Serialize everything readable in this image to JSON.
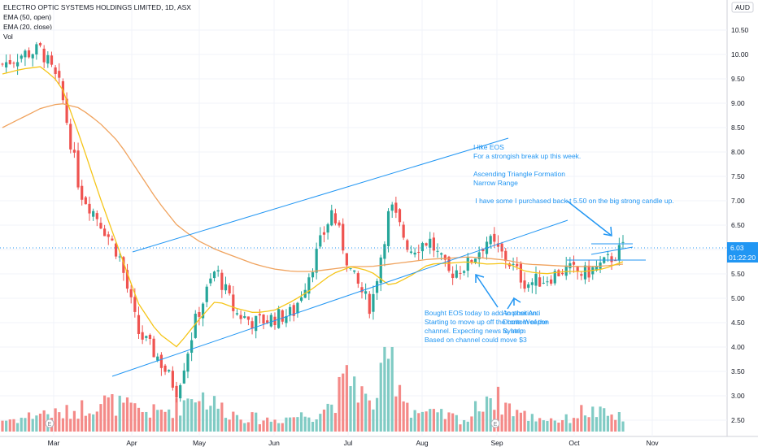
{
  "legend": {
    "title": "ELECTRO OPTIC SYSTEMS HOLDINGS LIMITED, 1D, ASX",
    "ema50": "EMA (50, open)",
    "ema20": "EMA (20, close)",
    "vol": "Vol"
  },
  "price_axis": {
    "currency": "AUD",
    "ticks": [
      "10.50",
      "10.00",
      "9.50",
      "9.00",
      "8.50",
      "8.00",
      "7.50",
      "7.00",
      "6.50",
      "6.00",
      "5.50",
      "5.00",
      "4.50",
      "4.00",
      "3.50",
      "3.00",
      "2.50"
    ],
    "last_price": "6.03",
    "countdown": "01:22:20"
  },
  "time_axis": {
    "ticks": [
      "Mar",
      "Apr",
      "May",
      "Jun",
      "Jul",
      "Aug",
      "Sep",
      "Oct",
      "Nov"
    ]
  },
  "annotations": {
    "top_note": [
      "I like EOS",
      "For a strongish break up this week.",
      "",
      "Ascending Triangle Formation",
      "Narrow Range",
      "",
      " I have some I purchased back t 5.50 on the big strong candle up."
    ],
    "bottom_note": [
      "Bought EOS today to add to position.",
      "Starting to move up off the bottom of the",
      "channel. Expecting news to help.",
      "Based on channel could move $3"
    ],
    "overlap_note": [
      "Another Anti",
      "Drone Weapon",
      "System"
    ]
  },
  "colors": {
    "up": "#26a69a",
    "down": "#ef5350",
    "vol_up": "#80cbc4",
    "vol_down": "#f48a88",
    "ema20": "#f5c518",
    "ema50": "#f0a35e",
    "drawing": "#2196f3",
    "last_price_line": "#2196f3",
    "grid": "#f0f3fa"
  },
  "chart_data": {
    "type": "candlestick",
    "title": "ELECTRO OPTIC SYSTEMS HOLDINGS LIMITED, 1D, ASX",
    "ylim": [
      2.3,
      11.0
    ],
    "y_unit": "AUD",
    "series": [
      {
        "name": "EMA (50, open)",
        "values": [
          8.5,
          8.7,
          8.9,
          9.0,
          8.9,
          8.6,
          8.2,
          7.6,
          7.0,
          6.5,
          6.2,
          6.0,
          5.85,
          5.7,
          5.6,
          5.55,
          5.55,
          5.6,
          5.65,
          5.65,
          5.7,
          5.75,
          5.8,
          5.82,
          5.85,
          5.82,
          5.78,
          5.7,
          5.68,
          5.66,
          5.65,
          5.66,
          5.7
        ]
      },
      {
        "name": "EMA (20, close)",
        "values": [
          9.6,
          9.7,
          9.75,
          9.4,
          8.3,
          7.1,
          6.0,
          4.9,
          4.3,
          4.0,
          4.5,
          4.95,
          4.8,
          4.7,
          4.75,
          4.95,
          5.2,
          5.5,
          5.65,
          5.55,
          5.25,
          5.45,
          5.7,
          5.72,
          5.75,
          5.7,
          5.72,
          5.55,
          5.5,
          5.55,
          5.55,
          5.6,
          5.75
        ]
      },
      {
        "name": "Close",
        "values": [
          9.8,
          10.0,
          10.1,
          9.3,
          7.2,
          6.6,
          5.9,
          4.3,
          3.8,
          3.1,
          4.6,
          5.6,
          4.7,
          4.5,
          4.6,
          4.7,
          5.7,
          6.8,
          5.5,
          4.8,
          6.9,
          6.0,
          6.2,
          5.5,
          5.7,
          6.2,
          5.8,
          5.3,
          5.4,
          5.6,
          5.5,
          5.7,
          6.03
        ]
      },
      {
        "name": "Volume",
        "values": [
          0.6,
          0.7,
          1.0,
          0.9,
          1.2,
          1.6,
          1.4,
          1.1,
          1.0,
          1.3,
          2.1,
          1.4,
          0.9,
          0.7,
          0.6,
          0.8,
          0.9,
          1.5,
          3.0,
          1.2,
          3.9,
          1.2,
          0.9,
          0.8,
          0.6,
          2.0,
          1.4,
          0.8,
          0.7,
          0.6,
          1.1,
          0.9,
          0.7
        ]
      }
    ],
    "time_ticks": [
      "Mar",
      "Apr",
      "May",
      "Jun",
      "Jul",
      "Aug",
      "Sep",
      "Oct",
      "Nov"
    ],
    "last_value": 6.03
  }
}
